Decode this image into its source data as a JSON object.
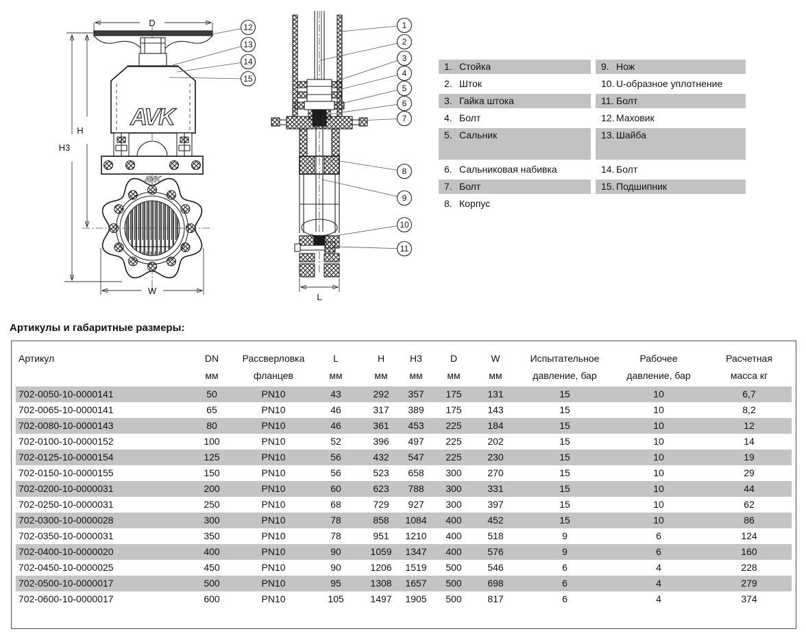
{
  "title": "Артикулы и габаритные размеры:",
  "diagram": {
    "logo": "AVK",
    "logo_small": "AVK",
    "front_dims": {
      "d": "D",
      "h": "H",
      "h3": "H3",
      "w": "W"
    },
    "section_dim_l": "L",
    "front_callouts": [
      "12",
      "13",
      "14",
      "15"
    ],
    "section_callouts_upper": [
      "1",
      "2",
      "3",
      "4",
      "5",
      "6",
      "7"
    ],
    "section_callouts_lower": [
      "8",
      "9",
      "10",
      "11"
    ]
  },
  "parts_list": {
    "left": [
      {
        "num": "1.",
        "name": "Стойка"
      },
      {
        "num": "2.",
        "name": "Шток"
      },
      {
        "num": "3.",
        "name": "Гайка штока"
      },
      {
        "num": "4.",
        "name": "Болт"
      },
      {
        "num": "5.",
        "name": "Сальник"
      },
      {
        "num": "6.",
        "name": "Сальниковая набивка"
      },
      {
        "num": "7.",
        "name": "Болт"
      },
      {
        "num": "8.",
        "name": "Корпус"
      }
    ],
    "right": [
      {
        "num": "9.",
        "name": "Нож"
      },
      {
        "num": "10.",
        "name": "U-образное уплотнение"
      },
      {
        "num": "11.",
        "name": "Болт"
      },
      {
        "num": "12.",
        "name": "Маховик"
      },
      {
        "num": "13.",
        "name": "Шайба"
      },
      {
        "num": "14.",
        "name": "Болт"
      },
      {
        "num": "15.",
        "name": "Подшипник"
      }
    ]
  },
  "table": {
    "columns": [
      {
        "label": "Артикул",
        "unit": ""
      },
      {
        "label": "DN",
        "unit": "мм"
      },
      {
        "label": "Рассверловка",
        "unit": "фланцев"
      },
      {
        "label": "L",
        "unit": "мм"
      },
      {
        "label": "H",
        "unit": "мм"
      },
      {
        "label": "H3",
        "unit": "мм"
      },
      {
        "label": "D",
        "unit": "мм"
      },
      {
        "label": "W",
        "unit": "мм"
      },
      {
        "label": "Испытательное",
        "unit": "давление, бар"
      },
      {
        "label": "Рабочее",
        "unit": "давление, бар"
      },
      {
        "label": "Расчетная",
        "unit": "масса кг"
      }
    ],
    "rows": [
      [
        "702-0050-10-0000141",
        "50",
        "PN10",
        "43",
        "292",
        "357",
        "175",
        "131",
        "15",
        "10",
        "6,7"
      ],
      [
        "702-0065-10-0000141",
        "65",
        "PN10",
        "46",
        "317",
        "389",
        "175",
        "143",
        "15",
        "10",
        "8,2"
      ],
      [
        "702-0080-10-0000143",
        "80",
        "PN10",
        "46",
        "361",
        "453",
        "225",
        "184",
        "15",
        "10",
        "12"
      ],
      [
        "702-0100-10-0000152",
        "100",
        "PN10",
        "52",
        "396",
        "497",
        "225",
        "202",
        "15",
        "10",
        "14"
      ],
      [
        "702-0125-10-0000154",
        "125",
        "PN10",
        "56",
        "432",
        "547",
        "225",
        "230",
        "15",
        "10",
        "19"
      ],
      [
        "702-0150-10-0000155",
        "150",
        "PN10",
        "56",
        "523",
        "658",
        "300",
        "270",
        "15",
        "10",
        "29"
      ],
      [
        "702-0200-10-0000031",
        "200",
        "PN10",
        "60",
        "623",
        "788",
        "300",
        "331",
        "15",
        "10",
        "44"
      ],
      [
        "702-0250-10-0000031",
        "250",
        "PN10",
        "68",
        "729",
        "927",
        "300",
        "397",
        "15",
        "10",
        "62"
      ],
      [
        "702-0300-10-0000028",
        "300",
        "PN10",
        "78",
        "858",
        "1084",
        "400",
        "452",
        "15",
        "10",
        "86"
      ],
      [
        "702-0350-10-0000031",
        "350",
        "PN10",
        "78",
        "951",
        "1210",
        "400",
        "518",
        "9",
        "6",
        "124"
      ],
      [
        "702-0400-10-0000020",
        "400",
        "PN10",
        "90",
        "1059",
        "1347",
        "400",
        "576",
        "9",
        "6",
        "160"
      ],
      [
        "702-0450-10-0000025",
        "450",
        "PN10",
        "90",
        "1206",
        "1519",
        "500",
        "546",
        "6",
        "4",
        "228"
      ],
      [
        "702-0500-10-0000017",
        "500",
        "PN10",
        "95",
        "1308",
        "1657",
        "500",
        "698",
        "6",
        "4",
        "279"
      ],
      [
        "702-0600-10-0000017",
        "600",
        "PN10",
        "105",
        "1497",
        "1905",
        "500",
        "817",
        "6",
        "4",
        "374"
      ]
    ]
  },
  "colors": {
    "row_shade": "#c4c4c4",
    "list_shade": "#c2c2c2",
    "line": "#222222"
  }
}
